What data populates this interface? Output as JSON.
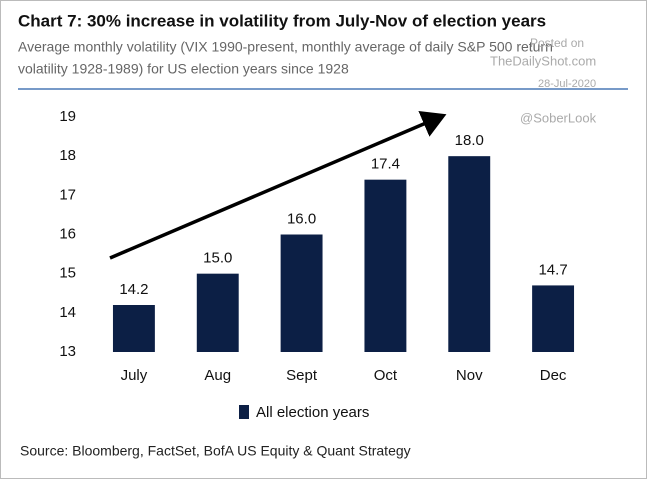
{
  "chart_data": {
    "type": "bar",
    "title": "Chart 7: 30% increase in volatility from July-Nov of election years",
    "subtitle": [
      "Average monthly volatility (VIX 1990-present, monthly average of daily S&P 500 return",
      "volatility 1928-1989) for US election years since 1928"
    ],
    "categories": [
      "July",
      "Aug",
      "Sept",
      "Oct",
      "Nov",
      "Dec"
    ],
    "series": [
      {
        "name": "All election years",
        "color": "#0c1f45",
        "values": [
          14.2,
          15.0,
          16.0,
          17.4,
          18.0,
          14.7
        ],
        "value_labels": [
          "14.2",
          "15.0",
          "16.0",
          "17.4",
          "18.0",
          "14.7"
        ]
      }
    ],
    "ylim": [
      13,
      19
    ],
    "yticks": [
      13,
      14,
      15,
      16,
      17,
      18,
      19
    ],
    "legend": "bottom",
    "watermarks": [
      "Posted on",
      "TheDailyShot.com",
      "28-Jul-2020",
      "@SoberLook"
    ],
    "source": "Source: Bloomberg, FactSet, BofA US Equity & Quant Strategy"
  }
}
